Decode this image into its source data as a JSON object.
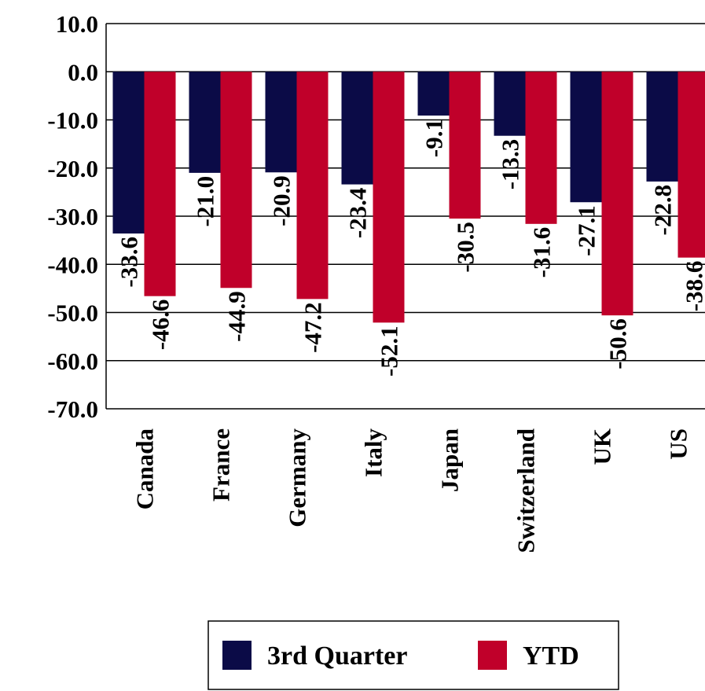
{
  "chart_data": {
    "type": "bar",
    "categories": [
      "Canada",
      "France",
      "Germany",
      "Italy",
      "Japan",
      "Switzerland",
      "UK",
      "US"
    ],
    "series": [
      {
        "name": "3rd Quarter",
        "color": "#0b0b47",
        "values": [
          -33.6,
          -21.0,
          -20.9,
          -23.4,
          -9.1,
          -13.3,
          -27.1,
          -22.8
        ],
        "value_labels": [
          "-33.6",
          "-21.0",
          "-20.9",
          "-23.4",
          "-9.1",
          "-13.3",
          "-27.1",
          "-22.8"
        ]
      },
      {
        "name": "YTD",
        "color": "#c0002a",
        "values": [
          -46.6,
          -44.9,
          -47.2,
          -52.1,
          -30.5,
          -31.6,
          -50.6,
          -38.6
        ],
        "value_labels": [
          "-46.6",
          "-44.9",
          "-47.2",
          "-52.1",
          "-30.5",
          "-31.6",
          "-50.6",
          "-38.6"
        ]
      }
    ],
    "ylim": [
      -70,
      10
    ],
    "yticks": [
      {
        "value": 10,
        "label": "10.0"
      },
      {
        "value": 0,
        "label": "0.0"
      },
      {
        "value": -10,
        "label": "-10.0"
      },
      {
        "value": -20,
        "label": "-20.0"
      },
      {
        "value": -30,
        "label": "-30.0"
      },
      {
        "value": -40,
        "label": "-40.0"
      },
      {
        "value": -50,
        "label": "-50.0"
      },
      {
        "value": -60,
        "label": "-60.0"
      },
      {
        "value": -70,
        "label": "-70.0"
      }
    ],
    "grid": true,
    "legend": "bottom"
  }
}
